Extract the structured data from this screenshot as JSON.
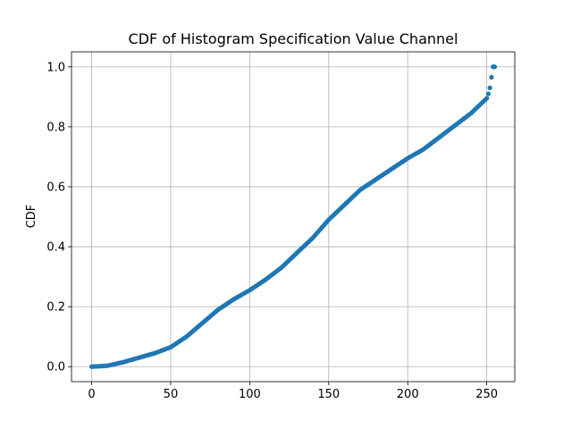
{
  "chart_data": {
    "type": "scatter",
    "title": "CDF of Histogram Specification Value Channel",
    "xlabel": "",
    "ylabel": "CDF",
    "xlim": [
      -12.75,
      267.75
    ],
    "ylim": [
      -0.05,
      1.05
    ],
    "xticks": [
      0,
      50,
      100,
      150,
      200,
      250
    ],
    "yticks": [
      0.0,
      0.2,
      0.4,
      0.6,
      0.8,
      1.0
    ],
    "ytick_labels": [
      "0.0",
      "0.2",
      "0.4",
      "0.6",
      "0.8",
      "1.0"
    ],
    "grid": true,
    "marker_color": "#1f77b4",
    "series": [
      {
        "anchors_x": [
          0,
          10,
          20,
          30,
          40,
          50,
          60,
          70,
          80,
          90,
          100,
          110,
          120,
          130,
          140,
          150,
          160,
          170,
          180,
          190,
          200,
          210,
          220,
          230,
          240,
          245,
          248,
          250,
          251,
          252,
          253,
          254,
          255
        ],
        "anchors_y": [
          0.0,
          0.003,
          0.015,
          0.03,
          0.045,
          0.065,
          0.1,
          0.145,
          0.19,
          0.225,
          0.255,
          0.29,
          0.33,
          0.38,
          0.43,
          0.49,
          0.54,
          0.59,
          0.625,
          0.66,
          0.695,
          0.725,
          0.765,
          0.805,
          0.845,
          0.87,
          0.885,
          0.895,
          0.91,
          0.93,
          0.965,
          1.0,
          1.0
        ],
        "x_range": [
          0,
          255
        ]
      }
    ]
  }
}
